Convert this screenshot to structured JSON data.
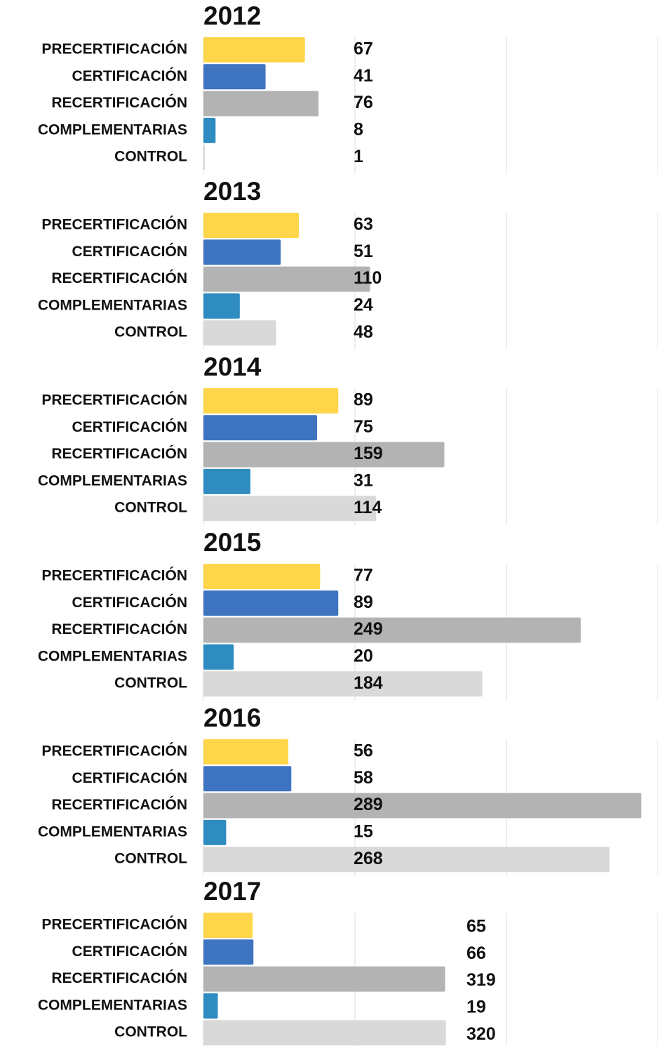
{
  "chart_data": [
    {
      "type": "bar",
      "title": "2012",
      "categories": [
        "PRECERTIFICACIÓN",
        "CERTIFICACIÓN",
        "RECERTIFICACIÓN",
        "COMPLEMENTARIAS",
        "CONTROL"
      ],
      "values": [
        67,
        41,
        76,
        8,
        1
      ],
      "colors": [
        "#ffd54a",
        "#3f74c0",
        "#b3b3b3",
        "#2e8cc0",
        "#d9d9d9"
      ],
      "xlim": [
        0,
        300
      ],
      "xticks": [
        0,
        100,
        200,
        300
      ],
      "grid": true
    },
    {
      "type": "bar",
      "title": "2013",
      "categories": [
        "PRECERTIFICACIÓN",
        "CERTIFICACIÓN",
        "RECERTIFICACIÓN",
        "COMPLEMENTARIAS",
        "CONTROL"
      ],
      "values": [
        63,
        51,
        110,
        24,
        48
      ],
      "colors": [
        "#ffd54a",
        "#3f74c0",
        "#b3b3b3",
        "#2e8cc0",
        "#d9d9d9"
      ],
      "xlim": [
        0,
        300
      ],
      "xticks": [
        0,
        100,
        200,
        300
      ],
      "grid": true
    },
    {
      "type": "bar",
      "title": "2014",
      "categories": [
        "PRECERTIFICACIÓN",
        "CERTIFICACIÓN",
        "RECERTIFICACIÓN",
        "COMPLEMENTARIAS",
        "CONTROL"
      ],
      "values": [
        89,
        75,
        159,
        31,
        114
      ],
      "colors": [
        "#ffd54a",
        "#3f74c0",
        "#b3b3b3",
        "#2e8cc0",
        "#d9d9d9"
      ],
      "xlim": [
        0,
        300
      ],
      "xticks": [
        0,
        100,
        200,
        300
      ],
      "grid": true
    },
    {
      "type": "bar",
      "title": "2015",
      "categories": [
        "PRECERTIFICACIÓN",
        "CERTIFICACIÓN",
        "RECERTIFICACIÓN",
        "COMPLEMENTARIAS",
        "CONTROL"
      ],
      "values": [
        77,
        89,
        249,
        20,
        184
      ],
      "colors": [
        "#ffd54a",
        "#3f74c0",
        "#b3b3b3",
        "#2e8cc0",
        "#d9d9d9"
      ],
      "xlim": [
        0,
        300
      ],
      "xticks": [
        0,
        100,
        200,
        300
      ],
      "grid": true
    },
    {
      "type": "bar",
      "title": "2016",
      "categories": [
        "PRECERTIFICACIÓN",
        "CERTIFICACIÓN",
        "RECERTIFICACIÓN",
        "COMPLEMENTARIAS",
        "CONTROL"
      ],
      "values": [
        56,
        58,
        289,
        15,
        268
      ],
      "colors": [
        "#ffd54a",
        "#3f74c0",
        "#b3b3b3",
        "#2e8cc0",
        "#d9d9d9"
      ],
      "xlim": [
        0,
        300
      ],
      "xticks": [
        0,
        100,
        200,
        300
      ],
      "grid": true
    },
    {
      "type": "bar",
      "title": "2017",
      "categories": [
        "PRECERTIFICACIÓN",
        "CERTIFICACIÓN",
        "RECERTIFICACIÓN",
        "COMPLEMENTARIAS",
        "CONTROL"
      ],
      "values": [
        65,
        66,
        319,
        19,
        320
      ],
      "colors": [
        "#ffd54a",
        "#3f74c0",
        "#b3b3b3",
        "#2e8cc0",
        "#d9d9d9"
      ],
      "xlim": [
        0,
        600
      ],
      "xticks": [
        0,
        200,
        400,
        600
      ],
      "grid": true
    }
  ]
}
